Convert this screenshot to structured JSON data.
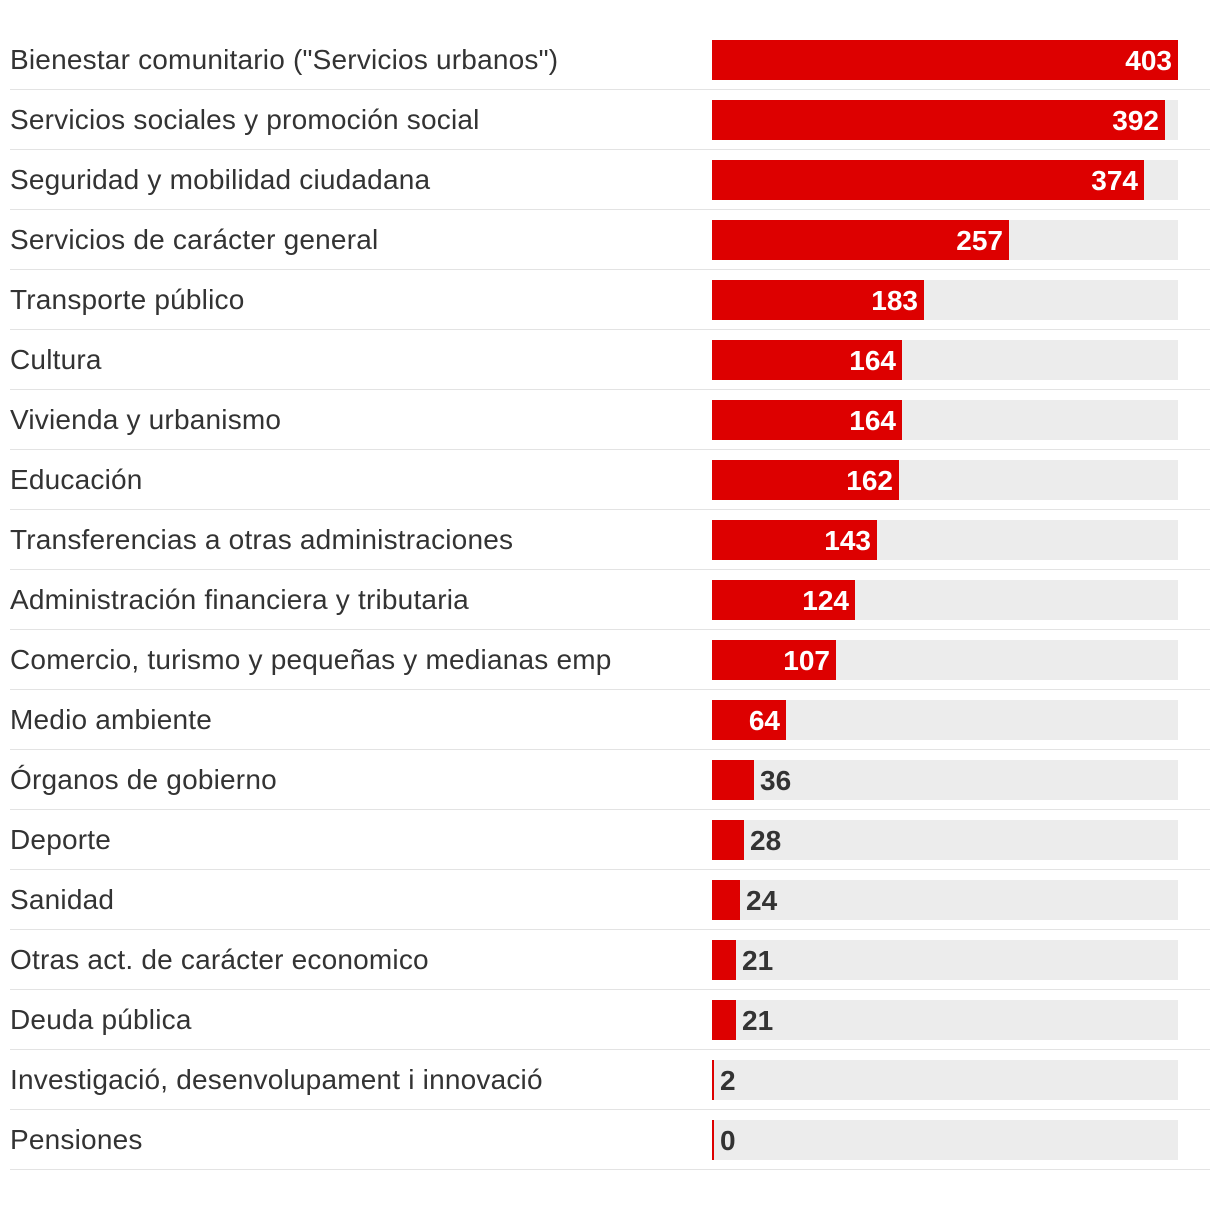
{
  "colors": {
    "bar": "#dd0000",
    "track": "#ececec",
    "text": "#333333",
    "value_inside": "#ffffff"
  },
  "chart_data": {
    "type": "bar",
    "orientation": "horizontal",
    "title": "",
    "xlabel": "",
    "ylabel": "",
    "xlim": [
      0,
      403
    ],
    "categories": [
      "Bienestar comunitario (\"Servicios urbanos\")",
      "Servicios sociales y promoción social",
      "Seguridad y mobilidad ciudadana",
      "Servicios de carácter general",
      "Transporte público",
      "Cultura",
      "Vivienda y urbanismo",
      "Educación",
      "Transferencias a otras administraciones",
      "Administración financiera y tributaria",
      "Comercio, turismo y pequeñas y medianas emp",
      "Medio ambiente",
      "Órganos de gobierno",
      "Deporte",
      "Sanidad",
      "Otras act. de carácter economico",
      "Deuda pública",
      "Investigació, desenvolupament i innovació",
      "Pensiones"
    ],
    "values": [
      403,
      392,
      374,
      257,
      183,
      164,
      164,
      162,
      143,
      124,
      107,
      64,
      36,
      28,
      24,
      21,
      21,
      2,
      0
    ],
    "value_labels": [
      "403",
      "392",
      "374",
      "257",
      "183",
      "164",
      "164",
      "162",
      "143",
      "124",
      "107",
      "64",
      "36",
      "28",
      "24",
      "21",
      "21",
      "2",
      "0"
    ]
  }
}
